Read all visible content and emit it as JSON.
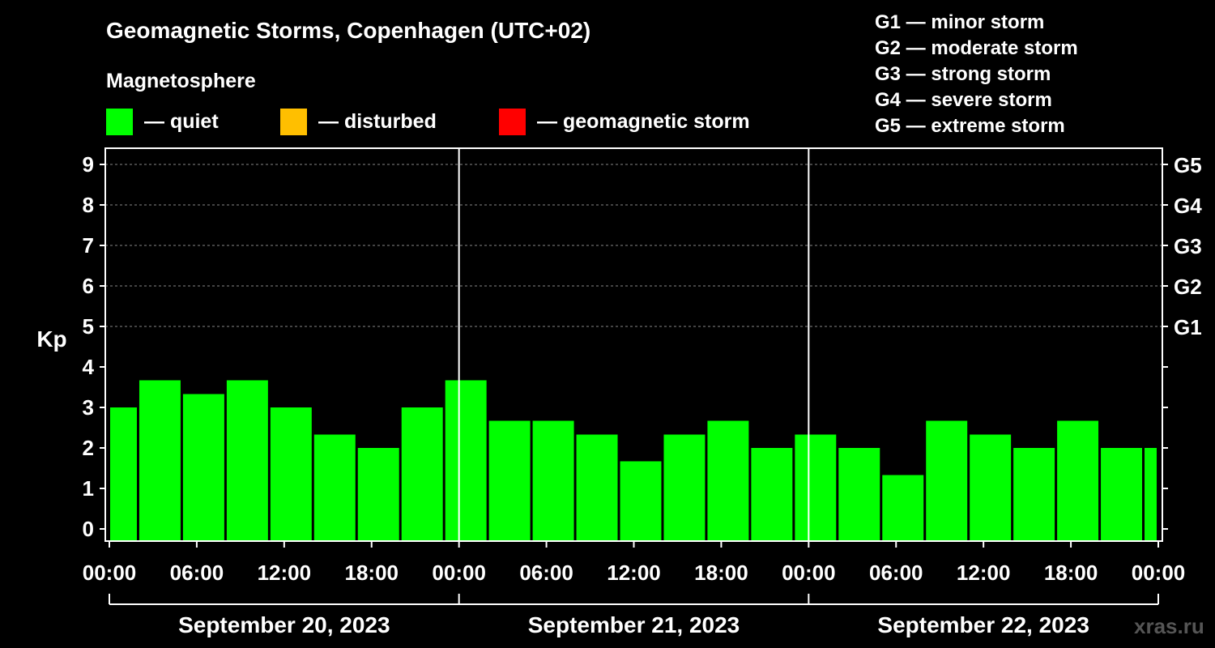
{
  "header": {
    "title": "Geomagnetic Storms, Copenhagen (UTC+02)",
    "subtitle": "Magnetosphere"
  },
  "legend": [
    {
      "label": "— quiet",
      "color": "#00ff00"
    },
    {
      "label": "— disturbed",
      "color": "#ffbf00"
    },
    {
      "label": "— geomagnetic storm",
      "color": "#ff0000"
    }
  ],
  "g_scale": [
    "G1 — minor storm",
    "G2 — moderate storm",
    "G3 — strong storm",
    "G4 — severe storm",
    "G5 — extreme storm"
  ],
  "watermark": "xras.ru",
  "colors": {
    "background": "#000000",
    "quiet": "#00ff00",
    "axis": "#ffffff",
    "grid": "#888888"
  },
  "chart_data": {
    "type": "bar",
    "ylabel": "Kp",
    "ylim": [
      -0.3,
      9.4
    ],
    "y_ticks": [
      "0",
      "1",
      "2",
      "3",
      "4",
      "5",
      "6",
      "7",
      "8",
      "9"
    ],
    "right_ticks": [
      {
        "value": 5,
        "label": "G1"
      },
      {
        "value": 6,
        "label": "G2"
      },
      {
        "value": 7,
        "label": "G3"
      },
      {
        "value": 8,
        "label": "G4"
      },
      {
        "value": 9,
        "label": "G5"
      }
    ],
    "grid_levels": [
      5,
      6,
      7,
      8,
      9
    ],
    "x_ticks": [
      "00:00",
      "06:00",
      "12:00",
      "18:00",
      "00:00",
      "06:00",
      "12:00",
      "18:00",
      "00:00",
      "06:00",
      "12:00",
      "18:00",
      "00:00"
    ],
    "x_range_hours": [
      0,
      72
    ],
    "days": [
      "September 20, 2023",
      "September 21, 2023",
      "September 22, 2023"
    ],
    "bars": [
      {
        "start": 0,
        "end": 2,
        "value": 3.0
      },
      {
        "start": 2,
        "end": 5,
        "value": 3.67
      },
      {
        "start": 5,
        "end": 8,
        "value": 3.33
      },
      {
        "start": 8,
        "end": 11,
        "value": 3.67
      },
      {
        "start": 11,
        "end": 14,
        "value": 3.0
      },
      {
        "start": 14,
        "end": 17,
        "value": 2.33
      },
      {
        "start": 17,
        "end": 20,
        "value": 2.0
      },
      {
        "start": 20,
        "end": 23,
        "value": 3.0
      },
      {
        "start": 23,
        "end": 26,
        "value": 3.67
      },
      {
        "start": 26,
        "end": 29,
        "value": 2.67
      },
      {
        "start": 29,
        "end": 32,
        "value": 2.67
      },
      {
        "start": 32,
        "end": 35,
        "value": 2.33
      },
      {
        "start": 35,
        "end": 38,
        "value": 1.67
      },
      {
        "start": 38,
        "end": 41,
        "value": 2.33
      },
      {
        "start": 41,
        "end": 44,
        "value": 2.67
      },
      {
        "start": 44,
        "end": 47,
        "value": 2.0
      },
      {
        "start": 47,
        "end": 50,
        "value": 2.33
      },
      {
        "start": 50,
        "end": 53,
        "value": 2.0
      },
      {
        "start": 53,
        "end": 56,
        "value": 1.33
      },
      {
        "start": 56,
        "end": 59,
        "value": 2.67
      },
      {
        "start": 59,
        "end": 62,
        "value": 2.33
      },
      {
        "start": 62,
        "end": 65,
        "value": 2.0
      },
      {
        "start": 65,
        "end": 68,
        "value": 2.67
      },
      {
        "start": 68,
        "end": 71,
        "value": 2.0
      },
      {
        "start": 71,
        "end": 72,
        "value": 2.0
      }
    ]
  }
}
